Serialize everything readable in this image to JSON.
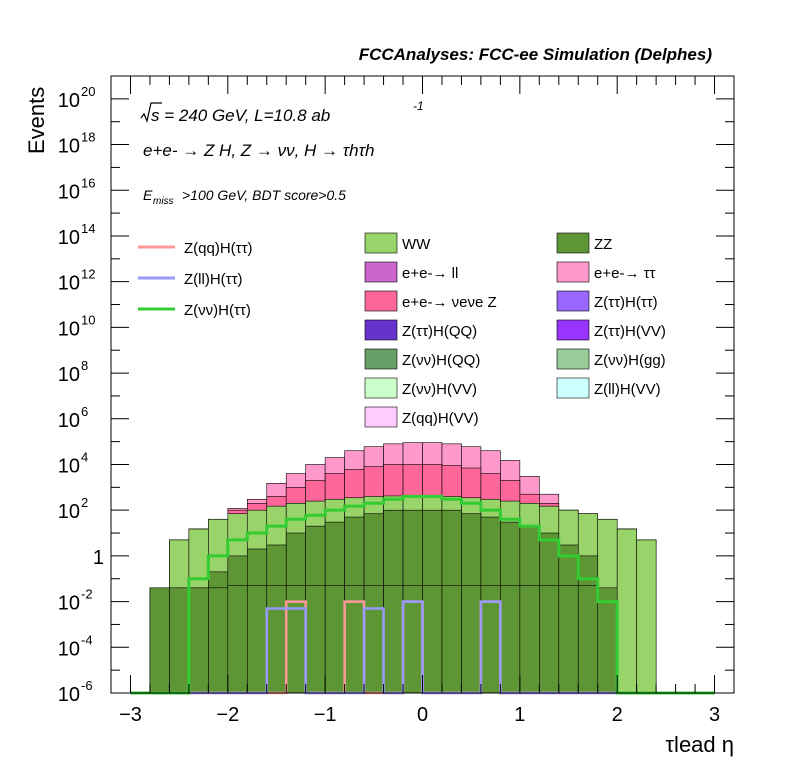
{
  "header": {
    "title": "FCCAnalyses: FCC-ee Simulation (Delphes)"
  },
  "annotations": {
    "sqrt_s": "s = 240 GeV, L=10.8 ab",
    "lumi_exp": "-1",
    "process": "e+e- → Z H, Z → νν, H → τhτh",
    "cut_sub_label": "miss",
    "cut_rest": ">100 GeV, BDT score>0.5"
  },
  "colors": {
    "WW": "#98d46a",
    "ZZ": "#5e9636",
    "ee_ll": "#cc66cc",
    "ee_tautau": "#ff99cc",
    "ee_nunuZ": "#ff6699",
    "Ztautau_Htautau": "#9966ff",
    "Ztautau_HQQ": "#6633cc",
    "Ztautau_HVV": "#9933ff",
    "Znunu_HQQ": "#66a066",
    "Znunu_Hgg": "#99cc99",
    "Znunu_HVV": "#ccffcc",
    "Zll_HVV": "#ccffff",
    "Zqq_HVV": "#ffccff",
    "sig_qq": "#ff9999",
    "sig_ll": "#9999ff",
    "sig_nunu": "#33cc33"
  },
  "chart_data": {
    "type": "bar",
    "subtype": "stacked-histogram-log",
    "title": "FCCAnalyses: FCC-ee Simulation (Delphes)",
    "xlabel": "τlead η",
    "ylabel": "Events",
    "xlim": [
      -3.2,
      3.2
    ],
    "ylim": [
      1e-06,
      1e+21
    ],
    "yscale": "log",
    "x_ticks": [
      "−3",
      "−2",
      "−1",
      "0",
      "1",
      "2",
      "3"
    ],
    "y_ticks": [
      {
        "base": "10",
        "exp": "-6"
      },
      {
        "base": "10",
        "exp": "-4"
      },
      {
        "base": "10",
        "exp": "-2"
      },
      {
        "base": "1",
        "exp": ""
      },
      {
        "base": "10",
        "exp": "2"
      },
      {
        "base": "10",
        "exp": "4"
      },
      {
        "base": "10",
        "exp": "6"
      },
      {
        "base": "10",
        "exp": "8"
      },
      {
        "base": "10",
        "exp": "10"
      },
      {
        "base": "10",
        "exp": "12"
      },
      {
        "base": "10",
        "exp": "14"
      },
      {
        "base": "10",
        "exp": "16"
      },
      {
        "base": "10",
        "exp": "18"
      },
      {
        "base": "10",
        "exp": "20"
      }
    ],
    "bin_edges": [
      -3.0,
      -2.8,
      -2.6,
      -2.4,
      -2.2,
      -2.0,
      -1.8,
      -1.6,
      -1.4,
      -1.2,
      -1.0,
      -0.8,
      -0.6,
      -0.4,
      -0.2,
      0.0,
      0.2,
      0.4,
      0.6,
      0.8,
      1.0,
      1.2,
      1.4,
      1.6,
      1.8,
      2.0,
      2.2,
      2.4,
      2.6,
      2.8,
      3.0
    ],
    "stack_boundaries": [
      {
        "name": "ZZ",
        "color_key": "ZZ",
        "top": [
          1e-06,
          0.04,
          0.04,
          0.04,
          0.04,
          0.05,
          0.05,
          0.05,
          0.05,
          0.05,
          0.05,
          0.05,
          0.05,
          0.05,
          0.05,
          0.05,
          0.05,
          0.05,
          0.05,
          0.05,
          0.05,
          0.05,
          0.05,
          0.05,
          1e-06,
          1e-06,
          1e-06,
          1e-06,
          1e-06,
          1e-06
        ]
      },
      {
        "name": "Z(νν)H(QQ)",
        "color_key": "Znunu_HQQ",
        "top": [
          1e-06,
          1e-06,
          1e-06,
          1e-06,
          1e-06,
          1e-06,
          1e-06,
          1e-06,
          1e-06,
          1e-06,
          1e-06,
          1e-06,
          1e-06,
          1e-06,
          1e-06,
          1e-06,
          1e-06,
          1e-06,
          1e-06,
          1e-06,
          1e-06,
          1e-06,
          1e-06,
          1e-06,
          1e-06,
          1e-06,
          1e-06,
          1e-06,
          1e-06,
          1e-06
        ]
      },
      {
        "name": "ZZ",
        "color_key": "ZZ",
        "top": [
          1e-06,
          0.04,
          0.04,
          0.04,
          0.2,
          1,
          2,
          3,
          10,
          20,
          30,
          50,
          70,
          100,
          100,
          100,
          100,
          70,
          50,
          30,
          20,
          10,
          3,
          1,
          0.04,
          1e-06,
          1e-06,
          1e-06,
          1e-06,
          1e-06
        ]
      },
      {
        "name": "WW",
        "color_key": "WW",
        "top": [
          1e-06,
          1e-06,
          5,
          15,
          40,
          70,
          100,
          150,
          200,
          250,
          300,
          350,
          400,
          420,
          420,
          420,
          400,
          350,
          300,
          250,
          200,
          150,
          100,
          70,
          40,
          15,
          5,
          1e-06,
          1e-06,
          1e-06
        ]
      },
      {
        "name": "e+e- → ννZ",
        "color_key": "ee_nunuZ",
        "top": [
          1e-06,
          1e-06,
          5,
          15,
          40,
          100,
          200,
          400,
          1000,
          2000,
          4000,
          6000,
          8000,
          10000,
          10000,
          10000,
          9000,
          7000,
          4000,
          2000,
          500,
          200,
          100,
          70,
          40,
          15,
          5,
          1e-06,
          1e-06,
          1e-06
        ]
      },
      {
        "name": "e+e- → ττ",
        "color_key": "ee_tautau",
        "top": [
          1e-06,
          1e-06,
          5,
          15,
          40,
          120,
          300,
          1500,
          4000,
          10000,
          20000,
          40000,
          60000,
          80000,
          90000,
          90000,
          80000,
          60000,
          40000,
          15000,
          3000,
          500,
          100,
          70,
          40,
          15,
          5,
          1e-06,
          1e-06,
          1e-06
        ]
      }
    ],
    "series": [
      {
        "name": "Z(qq)H(ττ)",
        "color_key": "sig_qq",
        "values": [
          1e-06,
          1e-06,
          1e-06,
          1e-06,
          1e-06,
          1e-06,
          1e-06,
          1e-06,
          0.01,
          1e-06,
          1e-06,
          0.01,
          1e-06,
          1e-06,
          0.01,
          1e-06,
          1e-06,
          1e-06,
          0.01,
          1e-06,
          1e-06,
          1e-06,
          1e-06,
          1e-06,
          1e-06,
          1e-06,
          1e-06,
          1e-06,
          1e-06,
          1e-06
        ]
      },
      {
        "name": "Z(ll)H(ττ)",
        "color_key": "sig_ll",
        "values": [
          1e-06,
          1e-06,
          1e-06,
          1e-06,
          1e-06,
          1e-06,
          1e-06,
          0.005,
          0.005,
          1e-06,
          1e-06,
          1e-06,
          0.005,
          1e-06,
          0.01,
          1e-06,
          1e-06,
          1e-06,
          0.01,
          1e-06,
          1e-06,
          1e-06,
          1e-06,
          1e-06,
          1e-06,
          1e-06,
          1e-06,
          1e-06,
          1e-06,
          1e-06
        ]
      },
      {
        "name": "Z(νν)H(ττ)",
        "color_key": "sig_nunu",
        "values": [
          1e-06,
          1e-06,
          1e-06,
          0.1,
          1,
          5,
          10,
          20,
          40,
          60,
          100,
          150,
          200,
          300,
          400,
          400,
          300,
          200,
          100,
          40,
          20,
          5,
          1,
          0.1,
          0.01,
          1e-06,
          1e-06,
          1e-06,
          1e-06,
          1e-06
        ]
      }
    ],
    "legend": {
      "placement": "top",
      "left_entries": [
        {
          "label": "Z(qq)H(ττ)",
          "color_key": "sig_qq",
          "kind": "line"
        },
        {
          "label": "Z(ll)H(ττ)",
          "color_key": "sig_ll",
          "kind": "line"
        },
        {
          "label": "Z(νν)H(ττ)",
          "color_key": "sig_nunu",
          "kind": "line"
        }
      ],
      "grid_entries": [
        {
          "label": "WW",
          "color_key": "WW"
        },
        {
          "label": "ZZ",
          "color_key": "ZZ"
        },
        {
          "label": "e+e-→ ll",
          "color_key": "ee_ll"
        },
        {
          "label": "e+e-→ ττ",
          "color_key": "ee_tautau"
        },
        {
          "label": "e+e-→ νeνe Z",
          "color_key": "ee_nunuZ"
        },
        {
          "label": "Z(ττ)H(ττ)",
          "color_key": "Ztautau_Htautau"
        },
        {
          "label": "Z(ττ)H(QQ)",
          "color_key": "Ztautau_HQQ"
        },
        {
          "label": "Z(ττ)H(VV)",
          "color_key": "Ztautau_HVV"
        },
        {
          "label": "Z(νν)H(QQ)",
          "color_key": "Znunu_HQQ"
        },
        {
          "label": "Z(νν)H(gg)",
          "color_key": "Znunu_Hgg"
        },
        {
          "label": "Z(νν)H(VV)",
          "color_key": "Znunu_HVV"
        },
        {
          "label": "Z(ll)H(VV)",
          "color_key": "Zll_HVV"
        },
        {
          "label": "Z(qq)H(VV)",
          "color_key": "Zqq_HVV"
        }
      ]
    }
  }
}
